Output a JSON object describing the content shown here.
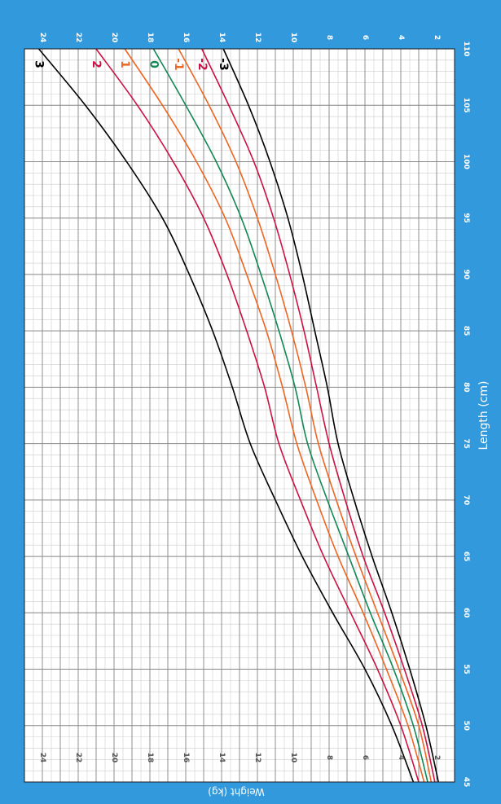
{
  "chart_data": {
    "type": "line",
    "orientation": "rotated-90",
    "xlabel": "Length (cm)",
    "ylabel": "Weight (kg)",
    "xlim": [
      45,
      110
    ],
    "ylim": [
      1,
      25
    ],
    "x_ticks": [
      45,
      50,
      55,
      60,
      65,
      70,
      75,
      80,
      85,
      90,
      95,
      100,
      105,
      110
    ],
    "y_ticks": [
      2,
      4,
      6,
      8,
      10,
      12,
      14,
      16,
      18,
      20,
      22,
      24
    ],
    "x_tick_labels": [
      "45",
      "50",
      "55",
      "60",
      "65",
      "70",
      "75",
      "80",
      "85",
      "90",
      "95",
      "100",
      "105",
      "110"
    ],
    "y_tick_labels": [
      "2",
      "4",
      "6",
      "8",
      "10",
      "12",
      "14",
      "16",
      "18",
      "20",
      "22",
      "24"
    ],
    "grid": true,
    "legend": "none",
    "x": [
      45,
      50,
      55,
      60,
      65,
      70,
      75,
      80,
      85,
      90,
      95,
      100,
      105,
      110
    ],
    "series": [
      {
        "label": "3",
        "color": "#000000",
        "values": [
          3.3,
          4.5,
          6.0,
          7.8,
          9.5,
          11.0,
          12.4,
          13.4,
          14.5,
          15.8,
          17.3,
          19.3,
          21.6,
          24.2
        ]
      },
      {
        "label": "2",
        "color": "#cc1144",
        "values": [
          3.0,
          4.0,
          5.3,
          6.8,
          8.3,
          9.6,
          10.8,
          11.6,
          12.6,
          13.7,
          15.0,
          16.7,
          18.7,
          21.0
        ]
      },
      {
        "label": "1",
        "color": "#ee6622",
        "values": [
          2.7,
          3.6,
          4.8,
          6.1,
          7.5,
          8.7,
          9.8,
          10.6,
          11.5,
          12.6,
          13.8,
          15.4,
          17.3,
          19.4
        ]
      },
      {
        "label": "0",
        "color": "#118855",
        "values": [
          2.5,
          3.3,
          4.4,
          5.7,
          6.9,
          8.1,
          9.2,
          9.9,
          10.8,
          11.8,
          12.9,
          14.3,
          16.0,
          17.8
        ]
      },
      {
        "label": "-1",
        "color": "#ee6622",
        "values": [
          2.3,
          3.0,
          4.1,
          5.3,
          6.5,
          7.6,
          8.6,
          9.3,
          10.1,
          11.0,
          12.0,
          13.2,
          14.7,
          16.4
        ]
      },
      {
        "label": "-2",
        "color": "#cc1144",
        "values": [
          2.1,
          2.8,
          3.8,
          4.9,
          6.1,
          7.1,
          8.0,
          8.7,
          9.4,
          10.2,
          11.1,
          12.2,
          13.6,
          15.1
        ]
      },
      {
        "label": "-3",
        "color": "#000000",
        "values": [
          1.9,
          2.6,
          3.5,
          4.5,
          5.6,
          6.6,
          7.5,
          8.1,
          8.8,
          9.5,
          10.3,
          11.3,
          12.5,
          13.9
        ]
      }
    ]
  }
}
